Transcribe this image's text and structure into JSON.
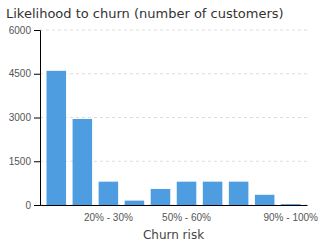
{
  "chart_data": {
    "type": "bar",
    "title": "Likelihood to churn (number of customers)",
    "xlabel": "Churn risk",
    "categories": [
      null,
      null,
      "20% - 30%",
      null,
      null,
      "50% - 60%",
      null,
      null,
      null,
      "90% - 100%"
    ],
    "values": [
      4600,
      2950,
      800,
      150,
      550,
      800,
      800,
      800,
      350,
      30
    ],
    "color": "#4d9de0",
    "ylim": [
      0,
      6000
    ],
    "yticks": [
      0,
      1500,
      3000,
      4500,
      6000
    ],
    "grid": true
  }
}
